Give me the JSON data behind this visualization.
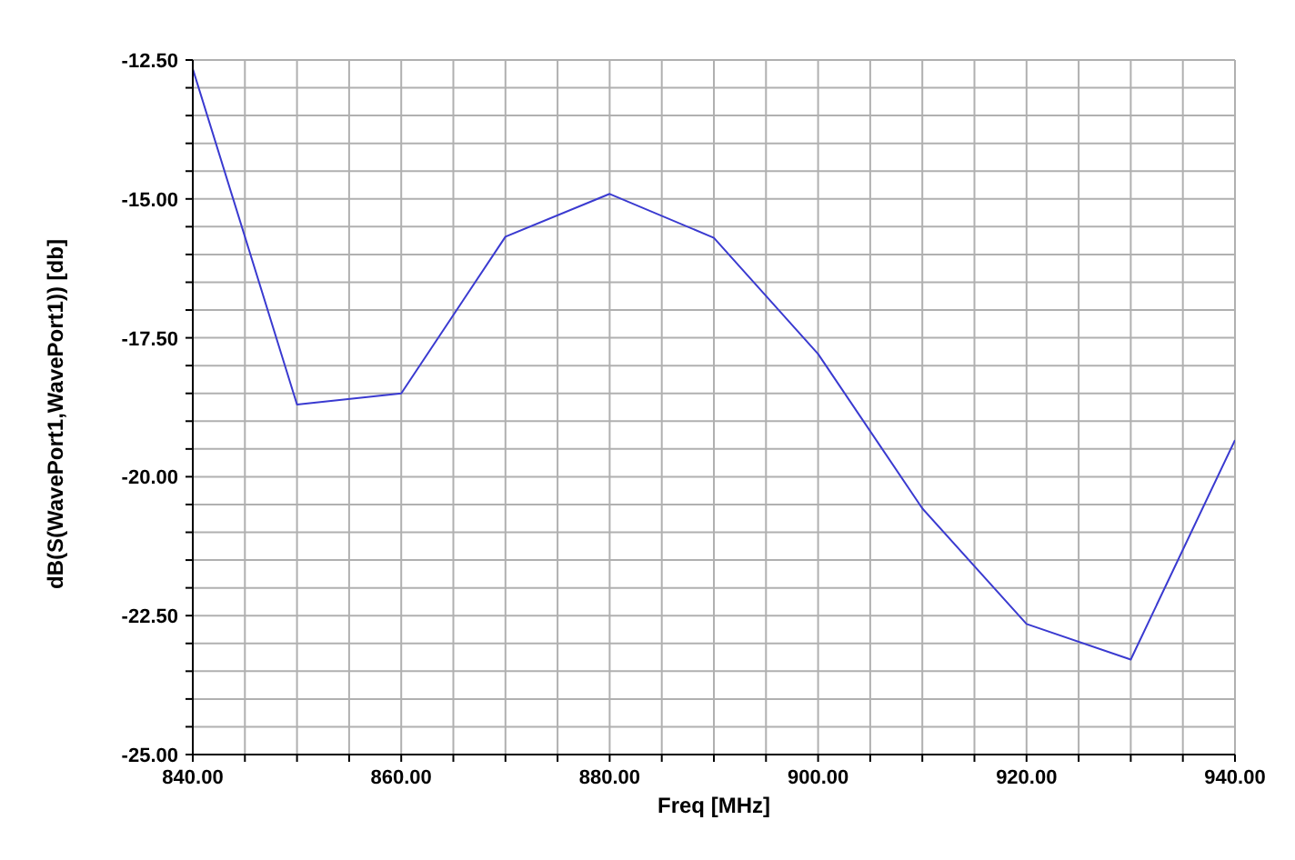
{
  "chart_data": {
    "type": "line",
    "xlabel": "Freq [MHz]",
    "ylabel": "dB(S(WavePort1,WavePort1)) [db]",
    "x": [
      840,
      850,
      860,
      870,
      880,
      890,
      900,
      910,
      920,
      930,
      940
    ],
    "series": [
      {
        "color": "#3a3ad0",
        "values": [
          -12.66,
          -18.7,
          -18.5,
          -15.68,
          -14.91,
          -15.7,
          -17.79,
          -20.57,
          -22.65,
          -23.29,
          -19.34
        ]
      }
    ],
    "xlim": [
      840,
      940
    ],
    "xticks": [
      {
        "value": 840,
        "label": "840.00"
      },
      {
        "value": 845,
        "label": null
      },
      {
        "value": 850,
        "label": null
      },
      {
        "value": 855,
        "label": null
      },
      {
        "value": 860,
        "label": "860.00"
      },
      {
        "value": 865,
        "label": null
      },
      {
        "value": 870,
        "label": null
      },
      {
        "value": 875,
        "label": null
      },
      {
        "value": 880,
        "label": "880.00"
      },
      {
        "value": 885,
        "label": null
      },
      {
        "value": 890,
        "label": null
      },
      {
        "value": 895,
        "label": null
      },
      {
        "value": 900,
        "label": "900.00"
      },
      {
        "value": 905,
        "label": null
      },
      {
        "value": 910,
        "label": null
      },
      {
        "value": 915,
        "label": null
      },
      {
        "value": 920,
        "label": "920.00"
      },
      {
        "value": 925,
        "label": null
      },
      {
        "value": 930,
        "label": null
      },
      {
        "value": 935,
        "label": null
      },
      {
        "value": 940,
        "label": "940.00"
      }
    ],
    "ylim": [
      -25,
      -12.5
    ],
    "yticks": [
      {
        "value": -25,
        "label": "-25.00"
      },
      {
        "value": -24.5,
        "label": null
      },
      {
        "value": -24,
        "label": null
      },
      {
        "value": -23.5,
        "label": null
      },
      {
        "value": -23,
        "label": null
      },
      {
        "value": -22.5,
        "label": "-22.50"
      },
      {
        "value": -22,
        "label": null
      },
      {
        "value": -21.5,
        "label": null
      },
      {
        "value": -21,
        "label": null
      },
      {
        "value": -20.5,
        "label": null
      },
      {
        "value": -20,
        "label": "-20.00"
      },
      {
        "value": -19.5,
        "label": null
      },
      {
        "value": -19,
        "label": null
      },
      {
        "value": -18.5,
        "label": null
      },
      {
        "value": -18,
        "label": null
      },
      {
        "value": -17.5,
        "label": "-17.50"
      },
      {
        "value": -17,
        "label": null
      },
      {
        "value": -16.5,
        "label": null
      },
      {
        "value": -16,
        "label": null
      },
      {
        "value": -15.5,
        "label": null
      },
      {
        "value": -15,
        "label": "-15.00"
      },
      {
        "value": -14.5,
        "label": null
      },
      {
        "value": -14,
        "label": null
      },
      {
        "value": -13.5,
        "label": null
      },
      {
        "value": -13,
        "label": null
      },
      {
        "value": -12.5,
        "label": "-12.50"
      }
    ],
    "grid": true,
    "marker": "none",
    "line_style": "solid"
  }
}
